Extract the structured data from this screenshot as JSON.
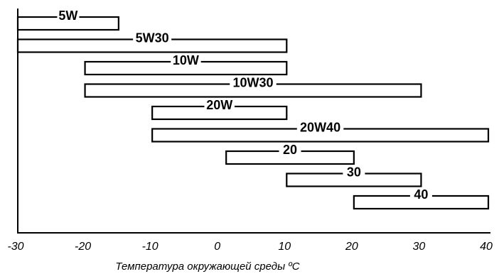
{
  "chart_data": {
    "type": "range-bar",
    "title": "",
    "xlabel": "Температура окружающей среды ºС",
    "ylabel": "",
    "xlim": [
      -30,
      40
    ],
    "x_ticks": [
      "-30",
      "-20",
      "-10",
      "0",
      "10",
      "20",
      "30",
      "40"
    ],
    "x_tick_values": [
      -30,
      -20,
      -10,
      0,
      10,
      20,
      30,
      40
    ],
    "grid": false,
    "legend": "none",
    "bar_fill": "#ffffff",
    "bar_stroke": "#000000",
    "bars": [
      {
        "label": "5W",
        "from": -30,
        "to": -15
      },
      {
        "label": "5W30",
        "from": -30,
        "to": 10
      },
      {
        "label": "10W",
        "from": -20,
        "to": 10
      },
      {
        "label": "10W30",
        "from": -20,
        "to": 30
      },
      {
        "label": "20W",
        "from": -10,
        "to": 10
      },
      {
        "label": "20W40",
        "from": -10,
        "to": 40
      },
      {
        "label": "20",
        "from": 1,
        "to": 20
      },
      {
        "label": "30",
        "from": 10,
        "to": 30
      },
      {
        "label": "40",
        "from": 20,
        "to": 40
      }
    ]
  }
}
